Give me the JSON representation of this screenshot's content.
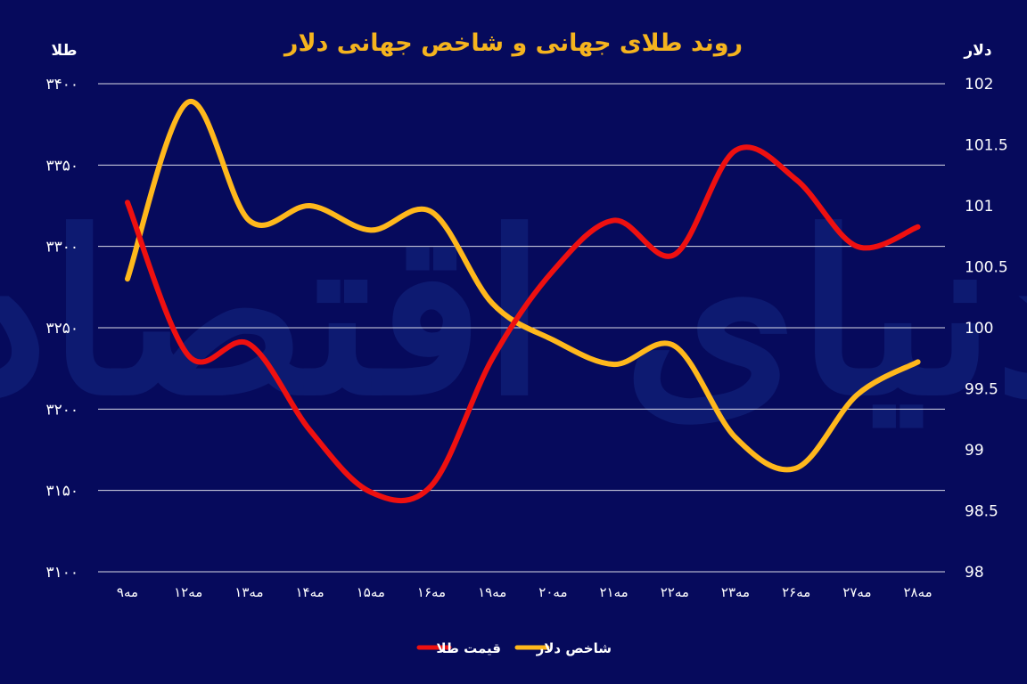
{
  "chart_data": {
    "type": "line",
    "title": "روند طلای جهانی و شاخص جهانی دلار",
    "y_left": {
      "label": "طلا",
      "ylim": [
        3100,
        3400
      ],
      "ticks": [
        "۳۱۰۰",
        "۳۱۵۰",
        "۳۲۰۰",
        "۳۲۵۰",
        "۳۳۰۰",
        "۳۳۵۰",
        "۳۴۰۰"
      ]
    },
    "y_right": {
      "label": "دلار",
      "ylim": [
        98,
        102
      ],
      "ticks": [
        "98",
        "98.5",
        "99",
        "99.5",
        "100",
        "100.5",
        "101",
        "101.5",
        "102"
      ]
    },
    "categories": [
      "۹مه",
      "۱۲مه",
      "۱۳مه",
      "۱۴مه",
      "۱۵مه",
      "۱۶مه",
      "۱۹مه",
      "۲۰مه",
      "۲۱مه",
      "۲۲مه",
      "۲۳مه",
      "۲۶مه",
      "۲۷مه",
      "۲۸مه"
    ],
    "series": [
      {
        "name": "قیمت طلا",
        "axis": "left",
        "color": "#ee1010",
        "values": [
          3327,
          3233,
          3240,
          3187,
          3149,
          3153,
          3231,
          3285,
          3316,
          3295,
          3359,
          3341,
          3300,
          3312
        ]
      },
      {
        "name": "شاخص دلار",
        "axis": "right",
        "color": "#ffb81c",
        "values": [
          100.4,
          101.85,
          100.88,
          101.0,
          100.8,
          100.95,
          100.2,
          99.9,
          99.7,
          99.85,
          99.1,
          98.85,
          99.45,
          99.72
        ]
      }
    ],
    "grid": true,
    "legend_position": "bottom-center"
  },
  "watermark": "دنیای اقتصاد"
}
